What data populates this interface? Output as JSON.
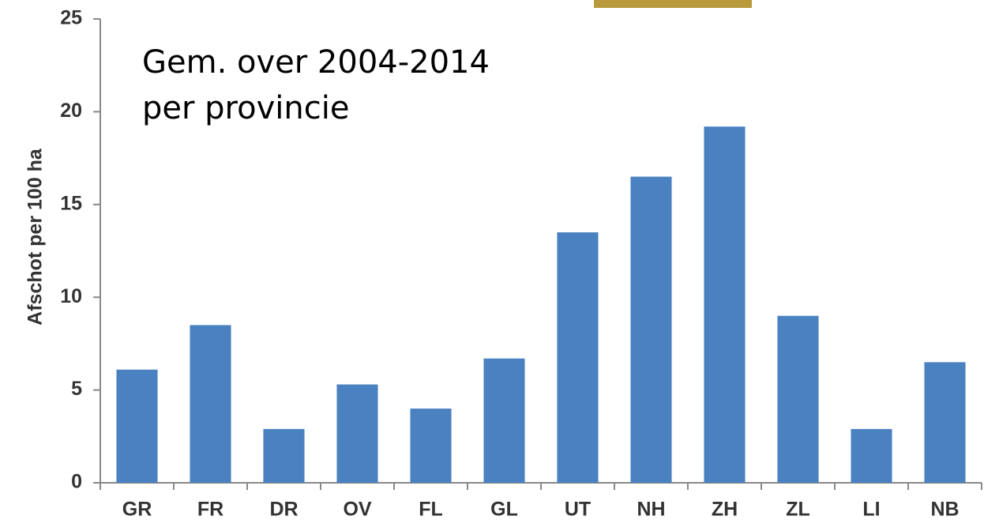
{
  "chart_data": {
    "type": "bar",
    "annotation": [
      "Gem. over 2004-2014",
      "per provincie"
    ],
    "y_label": "Afschot per 100 ha",
    "categories": [
      "GR",
      "FR",
      "DR",
      "OV",
      "FL",
      "GL",
      "UT",
      "NH",
      "ZH",
      "ZL",
      "LI",
      "NB"
    ],
    "values": [
      6.1,
      8.5,
      2.9,
      5.3,
      4.0,
      6.7,
      13.5,
      16.5,
      19.2,
      9.0,
      2.9,
      6.5
    ],
    "color": "#4a81c0",
    "ylim": [
      0,
      25
    ],
    "yticks": [
      0,
      5,
      10,
      15,
      20,
      25
    ],
    "grid": false
  }
}
